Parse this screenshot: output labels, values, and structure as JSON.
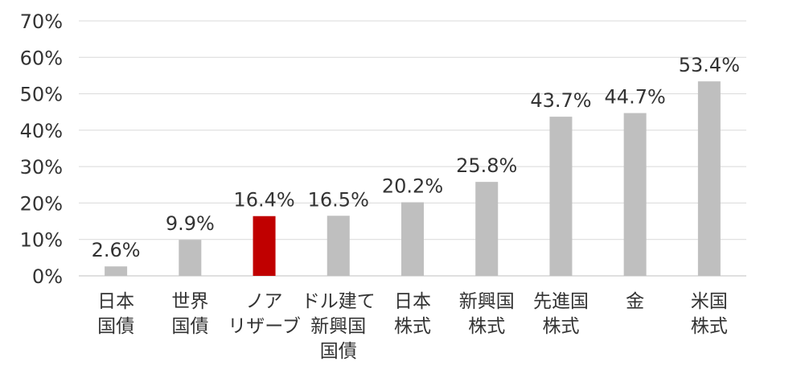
{
  "chart_data": {
    "type": "bar",
    "title": "",
    "xlabel": "",
    "ylabel": "",
    "ylim": [
      0,
      70
    ],
    "ytick_step": 10,
    "ytick_labels": [
      "0%",
      "10%",
      "20%",
      "30%",
      "40%",
      "50%",
      "60%",
      "70%"
    ],
    "grid": true,
    "categories": [
      [
        "日本",
        "国債"
      ],
      [
        "世界",
        "国債"
      ],
      [
        "ノア",
        "リザーブ"
      ],
      [
        "ドル建て",
        "新興国",
        "国債"
      ],
      [
        "日本",
        "株式"
      ],
      [
        "新興国",
        "株式"
      ],
      [
        "先進国",
        "株式"
      ],
      [
        "金"
      ],
      [
        "米国",
        "株式"
      ]
    ],
    "values": [
      2.6,
      9.9,
      16.4,
      16.5,
      20.2,
      25.8,
      43.7,
      44.7,
      53.4
    ],
    "data_labels": [
      "2.6%",
      "9.9%",
      "16.4%",
      "16.5%",
      "20.2%",
      "25.8%",
      "43.7%",
      "44.7%",
      "53.4%"
    ],
    "colors": [
      "#bfbfbf",
      "#bfbfbf",
      "#c00000",
      "#bfbfbf",
      "#bfbfbf",
      "#bfbfbf",
      "#bfbfbf",
      "#bfbfbf",
      "#bfbfbf"
    ]
  }
}
